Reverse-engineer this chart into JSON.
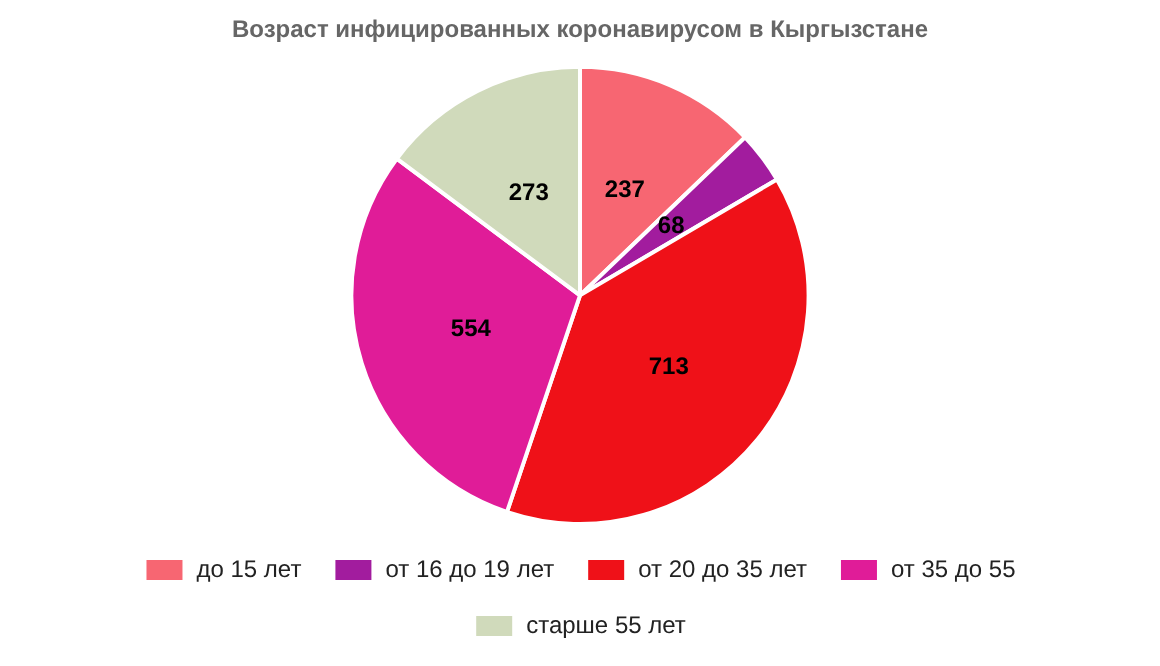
{
  "chart_data": {
    "type": "pie",
    "title": "Возраст инфицированных коронавирусом в Кыргызстане",
    "categories": [
      "до 15 лет",
      "от 16 до 19 лет",
      "от 20 до 35 лет",
      "от 35 до 55",
      "старше 55 лет"
    ],
    "values": [
      237,
      68,
      713,
      554,
      273
    ],
    "colors": [
      "#f76672",
      "#a21c9e",
      "#ef1118",
      "#e01c98",
      "#d0dabb"
    ],
    "data_labels": true,
    "legend": "bottom"
  }
}
